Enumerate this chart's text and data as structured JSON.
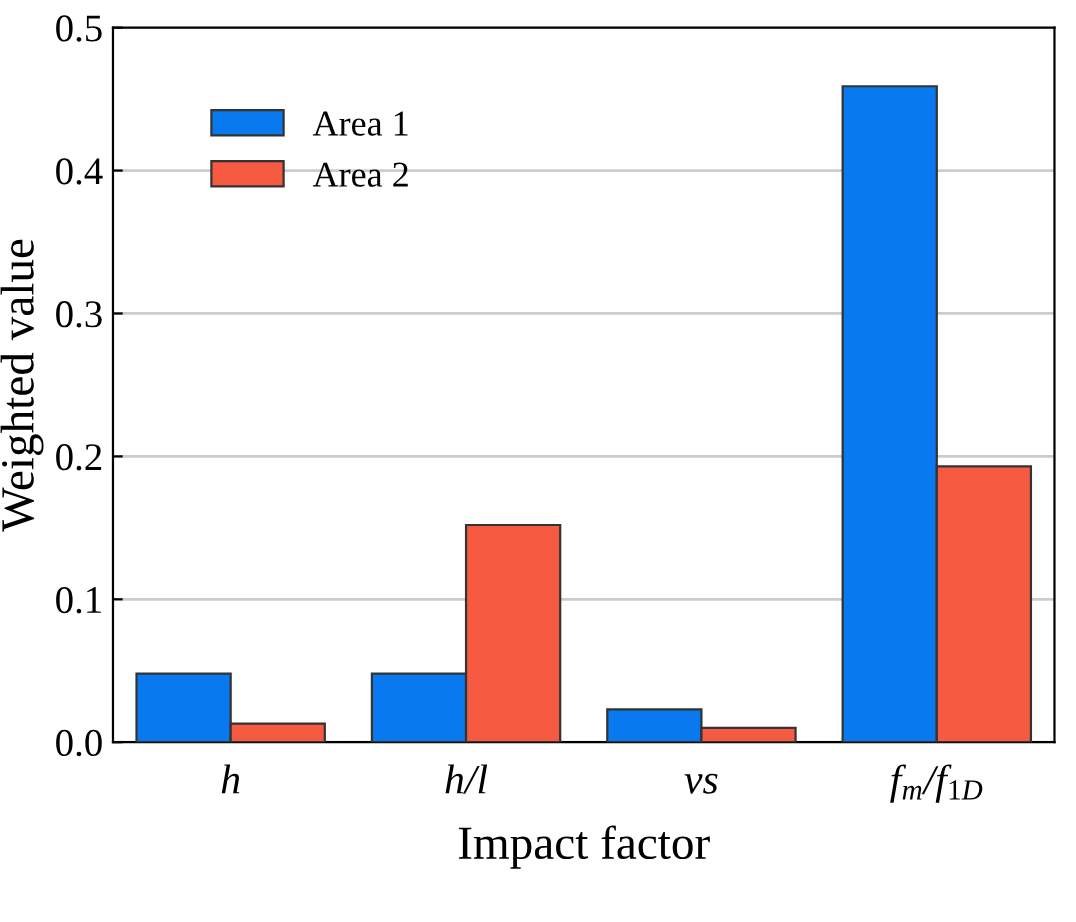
{
  "chart_data": {
    "type": "bar",
    "xlabel": "Impact factor",
    "ylabel": "Weighted value",
    "categories": [
      "h",
      "h/l",
      "vs",
      "f$_{m}$/f$_{1D}$"
    ],
    "series": [
      {
        "name": "Area 1",
        "color": "#0879ef",
        "values": [
          0.048,
          0.048,
          0.023,
          0.459
        ]
      },
      {
        "name": "Area 2",
        "color": "#f65a40",
        "values": [
          0.013,
          0.152,
          0.01,
          0.193
        ]
      }
    ],
    "ylim": [
      0,
      0.5
    ],
    "yticks": [
      {
        "value": 0,
        "label": "0.0"
      },
      0.1,
      0.2,
      0.3,
      0.4,
      0.5
    ],
    "grid": "y",
    "legend": "top left"
  }
}
